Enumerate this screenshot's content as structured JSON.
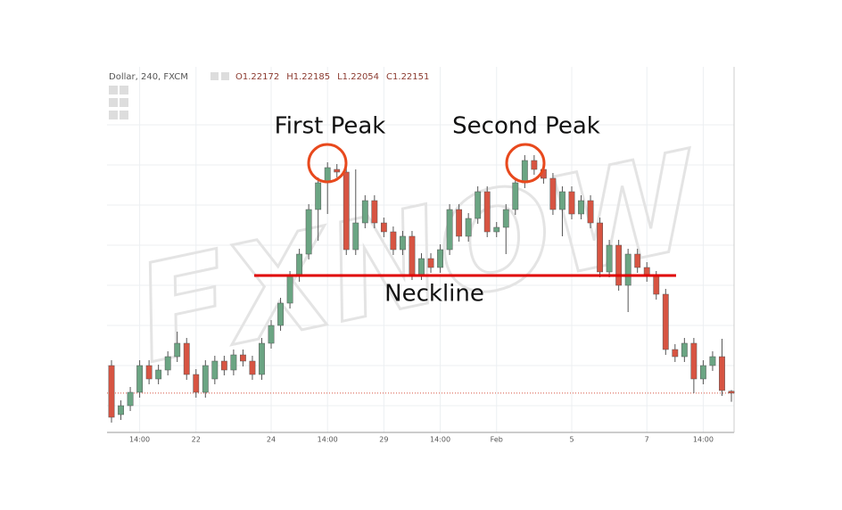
{
  "chart_data": {
    "type": "candlestick",
    "header": {
      "symbol": "Dollar, 240, FXCM",
      "ohlc": [
        "O1.22172",
        "H1.22185",
        "L1.22054",
        "C1.22151"
      ]
    },
    "categories": [
      null,
      null,
      null,
      "14:00",
      null,
      null,
      null,
      null,
      null,
      "22",
      null,
      null,
      null,
      null,
      null,
      null,
      null,
      "24",
      null,
      null,
      null,
      null,
      null,
      "14:00",
      null,
      null,
      null,
      null,
      null,
      "29",
      null,
      null,
      null,
      null,
      null,
      "14:00",
      null,
      null,
      null,
      null,
      null,
      "Feb",
      null,
      null,
      null,
      null,
      null,
      null,
      null,
      "5",
      null,
      null,
      null,
      null,
      null,
      null,
      null,
      "7",
      null,
      null,
      null,
      null,
      null,
      "14:00",
      null,
      null,
      null
    ],
    "open": [
      1.2246,
      1.2191,
      1.2201,
      1.2216,
      1.2246,
      1.2231,
      1.2241,
      1.2256,
      1.2271,
      1.2236,
      1.2216,
      1.2231,
      1.2251,
      1.2241,
      1.2258,
      1.2251,
      1.2236,
      1.2271,
      1.2291,
      1.2316,
      1.2346,
      1.2371,
      1.2421,
      1.2451,
      1.2466,
      1.2463,
      1.2376,
      1.2406,
      1.2431,
      1.2406,
      1.2396,
      1.2376,
      1.2391,
      1.2348,
      1.2366,
      1.2356,
      1.2376,
      1.2421,
      1.2391,
      1.2411,
      1.2441,
      1.2396,
      1.2401,
      1.2421,
      1.2451,
      1.2476,
      1.2466,
      1.2456,
      1.2421,
      1.2441,
      1.2416,
      1.2431,
      1.2406,
      1.2351,
      1.2381,
      1.2336,
      1.2371,
      1.2356,
      1.2346,
      1.2326,
      1.2264,
      1.2256,
      1.2271,
      1.2231,
      1.2246,
      1.2256,
      1.22172
    ],
    "high": [
      1.2252,
      1.2207,
      1.2222,
      1.2252,
      1.2252,
      1.2247,
      1.2262,
      1.2284,
      1.2277,
      1.2242,
      1.2252,
      1.2257,
      1.2257,
      1.2264,
      1.2264,
      1.2257,
      1.2277,
      1.2297,
      1.2322,
      1.2352,
      1.2377,
      1.2427,
      1.2457,
      1.2474,
      1.2472,
      1.2469,
      1.2466,
      1.2437,
      1.2437,
      1.2412,
      1.2402,
      1.2397,
      1.2397,
      1.2372,
      1.2372,
      1.2382,
      1.2427,
      1.2427,
      1.2417,
      1.2447,
      1.2447,
      1.2407,
      1.2427,
      1.2457,
      1.2482,
      1.2482,
      1.2472,
      1.2462,
      1.2447,
      1.2447,
      1.2437,
      1.2437,
      1.2412,
      1.2387,
      1.2387,
      1.2377,
      1.2377,
      1.2362,
      1.2352,
      1.2332,
      1.227,
      1.2277,
      1.2277,
      1.2252,
      1.2262,
      1.2276,
      1.22185
    ],
    "low": [
      1.2182,
      1.2185,
      1.2195,
      1.221,
      1.2225,
      1.2225,
      1.2235,
      1.225,
      1.223,
      1.221,
      1.221,
      1.2225,
      1.2235,
      1.2235,
      1.2245,
      1.223,
      1.223,
      1.2265,
      1.2285,
      1.231,
      1.234,
      1.2365,
      1.2386,
      1.2416,
      1.2457,
      1.237,
      1.237,
      1.24,
      1.24,
      1.239,
      1.237,
      1.237,
      1.2342,
      1.2342,
      1.235,
      1.235,
      1.237,
      1.2385,
      1.2385,
      1.2405,
      1.239,
      1.239,
      1.2371,
      1.2415,
      1.2445,
      1.246,
      1.245,
      1.2415,
      1.2391,
      1.241,
      1.241,
      1.24,
      1.2345,
      1.2345,
      1.233,
      1.2306,
      1.235,
      1.234,
      1.232,
      1.2258,
      1.225,
      1.225,
      1.2215,
      1.2225,
      1.224,
      1.2212,
      1.22054
    ],
    "close": [
      1.2188,
      1.2201,
      1.2216,
      1.2246,
      1.2231,
      1.2241,
      1.2256,
      1.2271,
      1.2236,
      1.2216,
      1.2246,
      1.2251,
      1.2241,
      1.2258,
      1.2251,
      1.2236,
      1.2271,
      1.2291,
      1.2316,
      1.2346,
      1.2371,
      1.2421,
      1.2451,
      1.2468,
      1.2463,
      1.2376,
      1.2406,
      1.2431,
      1.2406,
      1.2396,
      1.2376,
      1.2391,
      1.2348,
      1.2366,
      1.2356,
      1.2376,
      1.2421,
      1.2391,
      1.2411,
      1.2441,
      1.2396,
      1.2401,
      1.2421,
      1.2451,
      1.2476,
      1.2466,
      1.2456,
      1.2421,
      1.2441,
      1.2416,
      1.2431,
      1.2406,
      1.2351,
      1.2381,
      1.2336,
      1.2371,
      1.2356,
      1.2346,
      1.2326,
      1.2264,
      1.2256,
      1.2271,
      1.2231,
      1.2246,
      1.2256,
      1.2218,
      1.22151
    ],
    "up_color": "#6ba583",
    "down_color": "#d75442",
    "ylim": [
      1.2171,
      1.2581
    ],
    "annotations": [
      "First Peak",
      "Second Peak"
    ],
    "neckline": {
      "label": "Neckline",
      "value": 1.2347,
      "color": "#e00000"
    },
    "watermark": "FXNOW"
  }
}
